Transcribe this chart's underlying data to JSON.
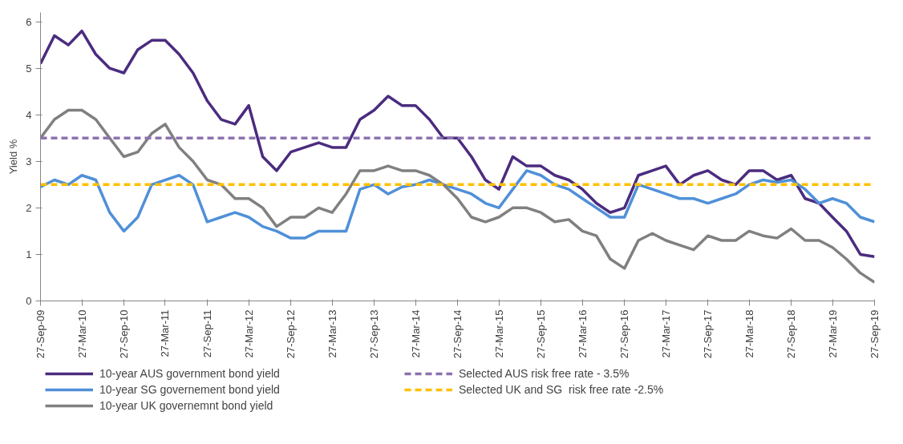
{
  "chart_data": {
    "type": "line",
    "ylabel": "Yield %",
    "x": [
      "2009-09-27",
      "2009-11-27",
      "2010-01-27",
      "2010-03-27",
      "2010-05-27",
      "2010-07-27",
      "2010-09-27",
      "2010-11-27",
      "2011-01-27",
      "2011-03-27",
      "2011-05-27",
      "2011-07-27",
      "2011-09-27",
      "2011-11-27",
      "2012-01-27",
      "2012-03-27",
      "2012-05-27",
      "2012-07-27",
      "2012-09-27",
      "2012-11-27",
      "2013-01-27",
      "2013-03-27",
      "2013-05-27",
      "2013-07-27",
      "2013-09-27",
      "2013-11-27",
      "2014-01-27",
      "2014-03-27",
      "2014-05-27",
      "2014-07-27",
      "2014-09-27",
      "2014-11-27",
      "2015-01-27",
      "2015-03-27",
      "2015-05-27",
      "2015-07-27",
      "2015-09-27",
      "2015-11-27",
      "2016-01-27",
      "2016-03-27",
      "2016-05-27",
      "2016-07-27",
      "2016-09-27",
      "2016-11-27",
      "2017-01-27",
      "2017-03-27",
      "2017-05-27",
      "2017-07-27",
      "2017-09-27",
      "2017-11-27",
      "2018-01-27",
      "2018-03-27",
      "2018-05-27",
      "2018-07-27",
      "2018-09-27",
      "2018-11-27",
      "2019-01-27",
      "2019-03-27",
      "2019-05-27",
      "2019-07-27",
      "2019-09-27"
    ],
    "series": [
      {
        "name": "10-year AUS government bond yield",
        "color": "#4b2c7f",
        "values": [
          5.1,
          5.7,
          5.5,
          5.8,
          5.3,
          5.0,
          4.9,
          5.4,
          5.6,
          5.6,
          5.3,
          4.9,
          4.3,
          3.9,
          3.8,
          4.2,
          3.1,
          2.8,
          3.2,
          3.3,
          3.4,
          3.3,
          3.3,
          3.9,
          4.1,
          4.4,
          4.2,
          4.2,
          3.9,
          3.5,
          3.5,
          3.1,
          2.6,
          2.4,
          3.1,
          2.9,
          2.9,
          2.7,
          2.6,
          2.4,
          2.1,
          1.9,
          2.0,
          2.7,
          2.8,
          2.9,
          2.5,
          2.7,
          2.8,
          2.6,
          2.5,
          2.8,
          2.8,
          2.6,
          2.7,
          2.2,
          2.1,
          1.8,
          1.5,
          1.0,
          0.95
        ]
      },
      {
        "name": "10-year SG governement bond yield",
        "color": "#5090d8",
        "values": [
          2.45,
          2.6,
          2.5,
          2.7,
          2.6,
          1.9,
          1.5,
          1.8,
          2.5,
          2.6,
          2.7,
          2.5,
          1.7,
          1.8,
          1.9,
          1.8,
          1.6,
          1.5,
          1.35,
          1.35,
          1.5,
          1.5,
          1.5,
          2.4,
          2.5,
          2.3,
          2.45,
          2.5,
          2.6,
          2.5,
          2.4,
          2.3,
          2.1,
          2.0,
          2.4,
          2.8,
          2.7,
          2.5,
          2.4,
          2.2,
          2.0,
          1.8,
          1.8,
          2.5,
          2.4,
          2.3,
          2.2,
          2.2,
          2.1,
          2.2,
          2.3,
          2.5,
          2.6,
          2.55,
          2.6,
          2.4,
          2.1,
          2.2,
          2.1,
          1.8,
          1.7
        ]
      },
      {
        "name": "10-year UK governemnt bond yield",
        "color": "#808080",
        "values": [
          3.5,
          3.9,
          4.1,
          4.1,
          3.9,
          3.5,
          3.1,
          3.2,
          3.6,
          3.8,
          3.3,
          3.0,
          2.6,
          2.5,
          2.2,
          2.2,
          2.0,
          1.6,
          1.8,
          1.8,
          2.0,
          1.9,
          2.3,
          2.8,
          2.8,
          2.9,
          2.8,
          2.8,
          2.7,
          2.5,
          2.2,
          1.8,
          1.7,
          1.8,
          2.0,
          2.0,
          1.9,
          1.7,
          1.75,
          1.5,
          1.4,
          0.9,
          0.7,
          1.3,
          1.45,
          1.3,
          1.2,
          1.1,
          1.4,
          1.3,
          1.3,
          1.5,
          1.4,
          1.35,
          1.55,
          1.3,
          1.3,
          1.15,
          0.9,
          0.6,
          0.4
        ]
      }
    ],
    "ref_lines": [
      {
        "axis": "y",
        "value": 3.5,
        "label": "Selected AUS risk free rate - 3.5%",
        "color": "#8c72b0",
        "line_style": "dashed"
      },
      {
        "axis": "y",
        "value": 2.5,
        "label": "Selected UK and SG  risk free rate -2.5%",
        "color": "#ffc000",
        "line_style": "dashed"
      }
    ],
    "xlim": [
      "2009-09-27",
      "2019-09-27"
    ],
    "xticks": [
      {
        "value": "2009-09-27",
        "label": "27-Sep-09"
      },
      {
        "value": "2010-03-27",
        "label": "27-Mar-10"
      },
      {
        "value": "2010-09-27",
        "label": "27-Sep-10"
      },
      {
        "value": "2011-03-27",
        "label": "27-Mar-11"
      },
      {
        "value": "2011-09-27",
        "label": "27-Sep-11"
      },
      {
        "value": "2012-03-27",
        "label": "27-Mar-12"
      },
      {
        "value": "2012-09-27",
        "label": "27-Sep-12"
      },
      {
        "value": "2013-03-27",
        "label": "27-Mar-13"
      },
      {
        "value": "2013-09-27",
        "label": "27-Sep-13"
      },
      {
        "value": "2014-03-27",
        "label": "27-Mar-14"
      },
      {
        "value": "2014-09-27",
        "label": "27-Sep-14"
      },
      {
        "value": "2015-03-27",
        "label": "27-Mar-15"
      },
      {
        "value": "2015-09-27",
        "label": "27-Sep-15"
      },
      {
        "value": "2016-03-27",
        "label": "27-Mar-16"
      },
      {
        "value": "2016-09-27",
        "label": "27-Sep-16"
      },
      {
        "value": "2017-03-27",
        "label": "27-Mar-17"
      },
      {
        "value": "2017-09-27",
        "label": "27-Sep-17"
      },
      {
        "value": "2018-03-27",
        "label": "27-Mar-18"
      },
      {
        "value": "2018-09-27",
        "label": "27-Sep-18"
      },
      {
        "value": "2019-03-27",
        "label": "27-Mar-19"
      },
      {
        "value": "2019-09-27",
        "label": "27-Sep-19"
      }
    ],
    "ylim": [
      0,
      6.2
    ],
    "yticks": [
      0,
      1,
      2,
      3,
      4,
      5,
      6
    ],
    "grid": false,
    "legend": "bottom",
    "marker": "none",
    "line_style": "solid"
  }
}
